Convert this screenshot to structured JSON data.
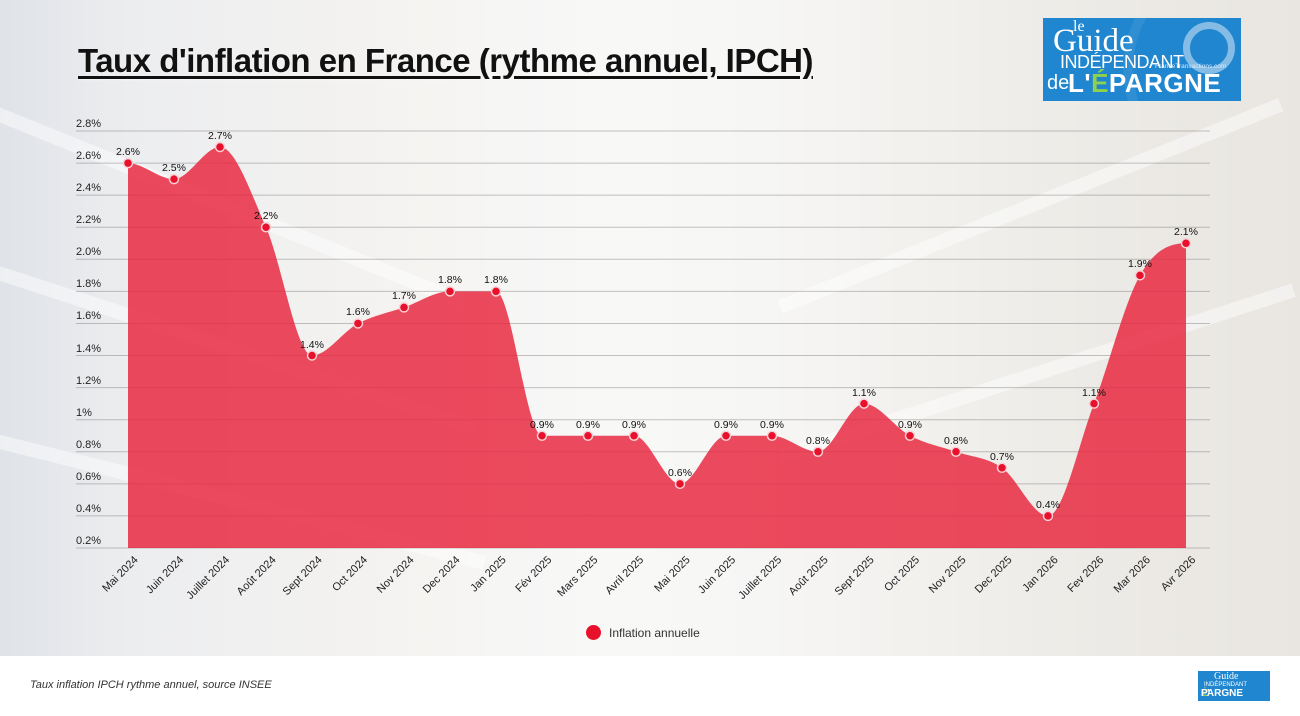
{
  "header": {
    "title": "Taux d'inflation en France (rythme annuel, IPCH)"
  },
  "logo": {
    "le": "le",
    "guide": "Guide",
    "independant": "INDÉPENDANT",
    "site": "FranceTransactions.com",
    "de": "de",
    "epargne_prefix": "L'",
    "epargne_e": "É",
    "epargne_rest": "PARGNE",
    "brand_color": "#1f86cf",
    "accent_color": "#8fd14f"
  },
  "legend": {
    "label": "Inflation annuelle",
    "color": "#e8102a"
  },
  "footer": {
    "source": "Taux inflation IPCH rythme annuel, source INSEE"
  },
  "chart_data": {
    "type": "area",
    "title": "Taux d'inflation en France (rythme annuel, IPCH)",
    "xlabel": "",
    "ylabel": "",
    "ylim": [
      0.2,
      2.8
    ],
    "yticks": [
      "0.2%",
      "0.4%",
      "0.6%",
      "0.8%",
      "1%",
      "1.2%",
      "1.4%",
      "1.6%",
      "1.8%",
      "2.0%",
      "2.2%",
      "2.4%",
      "2.6%",
      "2.8%"
    ],
    "grid": true,
    "legend_position": "bottom",
    "fill_color": "#e8223a",
    "categories": [
      "Mai 2024",
      "Juin 2024",
      "Juillet 2024",
      "Août 2024",
      "Sept 2024",
      "Oct 2024",
      "Nov 2024",
      "Dec 2024",
      "Jan 2025",
      "Fév 2025",
      "Mars 2025",
      "Avril 2025",
      "Mai 2025",
      "Juin 2025",
      "Juillet 2025",
      "Août 2025",
      "Sept 2025",
      "Oct 2025",
      "Nov 2025",
      "Dec 2025",
      "Jan 2026",
      "Fev 2026",
      "Mar 2026",
      "Avr 2026"
    ],
    "series": [
      {
        "name": "Inflation annuelle",
        "values": [
          2.6,
          2.5,
          2.7,
          2.2,
          1.4,
          1.6,
          1.7,
          1.8,
          1.8,
          0.9,
          0.9,
          0.9,
          0.6,
          0.9,
          0.9,
          0.8,
          1.1,
          0.9,
          0.8,
          0.7,
          0.4,
          1.1,
          1.9,
          2.1
        ],
        "labels": [
          "2.6%",
          "2.5%",
          "2.7%",
          "2.2%",
          "1.4%",
          "1.6%",
          "1.7%",
          "1.8%",
          "1.8%",
          "0.9%",
          "0.9%",
          "0.9%",
          "0.6%",
          "0.9%",
          "0.9%",
          "0.8%",
          "1.1%",
          "0.9%",
          "0.8%",
          "0.7%",
          "0.4%",
          "1.1%",
          "1.9%",
          "2.1%"
        ]
      }
    ]
  }
}
